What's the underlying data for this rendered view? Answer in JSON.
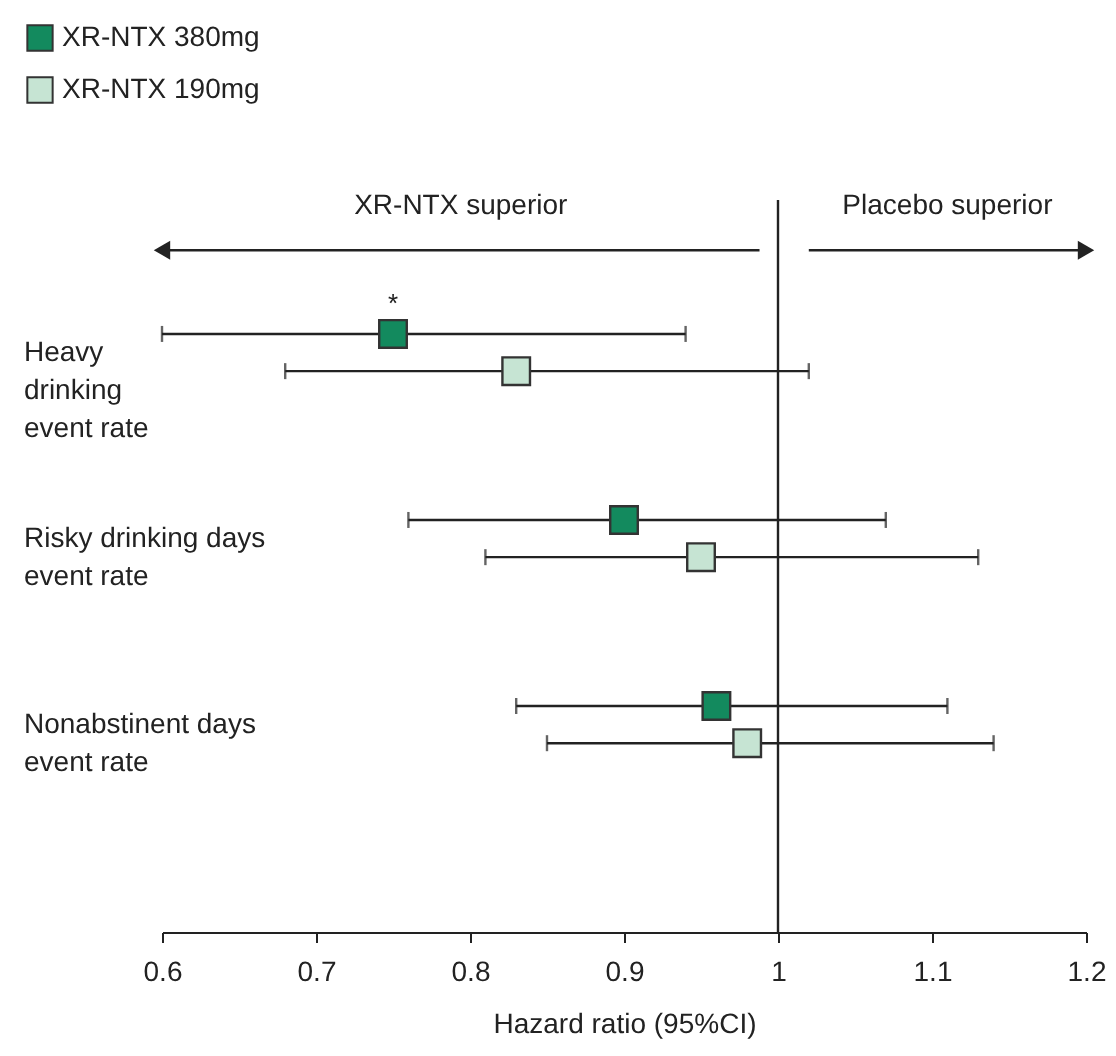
{
  "chart_data": {
    "type": "scatter",
    "orientation": "horizontal",
    "marker": "square",
    "grid": false,
    "legend": "top left",
    "xlabel": "Hazard ratio (95%CI)",
    "categories": [
      "Heavy drinking event rate",
      "Risky drinking days event rate",
      "Nonabstinent days event rate"
    ],
    "series": [
      {
        "name": "XR-NTX 380mg",
        "color": "#138a5e",
        "values": [
          0.75,
          0.9,
          0.96
        ],
        "errors": [
          [
            0.6,
            0.94
          ],
          [
            0.76,
            1.07
          ],
          [
            0.83,
            1.11
          ]
        ]
      },
      {
        "name": "XR-NTX 190mg",
        "color": "#c6e4d3",
        "values": [
          0.83,
          0.95,
          0.98
        ],
        "errors": [
          [
            0.68,
            1.02
          ],
          [
            0.81,
            1.13
          ],
          [
            0.85,
            1.14
          ]
        ]
      }
    ],
    "xlim": [
      0.6,
      1.2
    ],
    "xticks": [
      0.6,
      0.7,
      0.8,
      0.9,
      1,
      1.1,
      1.2
    ],
    "ref_lines": [
      {
        "axis": "x",
        "value": 1
      }
    ],
    "annotations": [
      "XR-NTX superior",
      "Placebo superior",
      "*"
    ]
  }
}
